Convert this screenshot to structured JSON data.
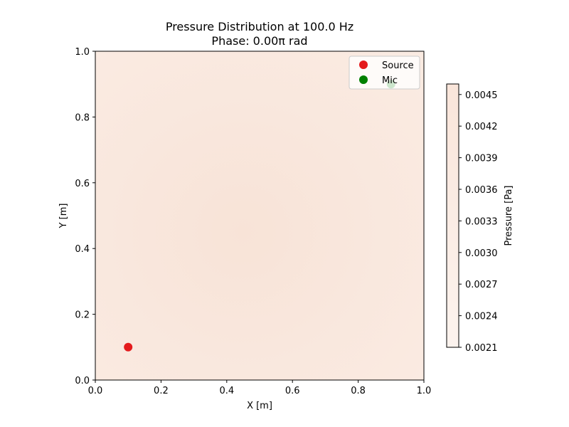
{
  "chart_data": {
    "type": "heatmap",
    "title": [
      "Pressure Distribution at 100.0 Hz",
      "Phase: 0.00π rad"
    ],
    "xlabel": "X [m]",
    "ylabel": "Y [m]",
    "xlim": [
      0,
      1
    ],
    "ylim": [
      0,
      1
    ],
    "xticks": [
      "0.0",
      "0.2",
      "0.4",
      "0.6",
      "0.8",
      "1.0"
    ],
    "yticks": [
      "0.0",
      "0.2",
      "0.4",
      "0.6",
      "0.8",
      "1.0"
    ],
    "grid": false,
    "field": {
      "description_max_location": [
        0.45,
        0.45
      ],
      "min_value": 0.0021,
      "max_value": 0.0046
    },
    "points": [
      {
        "name": "Source",
        "x": 0.1,
        "y": 0.1,
        "color": "#e41a1c"
      },
      {
        "name": "Mic",
        "x": 0.9,
        "y": 0.9,
        "color": "#008000"
      }
    ],
    "legend": {
      "position": "top-right",
      "entries": [
        "Source",
        "Mic"
      ]
    },
    "colorbar": {
      "label": "Pressure [Pa]",
      "ticks": [
        "0.0045",
        "0.0042",
        "0.0039",
        "0.0036",
        "0.0033",
        "0.0030",
        "0.0027",
        "0.0024",
        "0.0021"
      ],
      "range": [
        0.0021,
        0.0046
      ],
      "color_low": "#fcf3ee",
      "color_high": "#f9e5da"
    }
  }
}
